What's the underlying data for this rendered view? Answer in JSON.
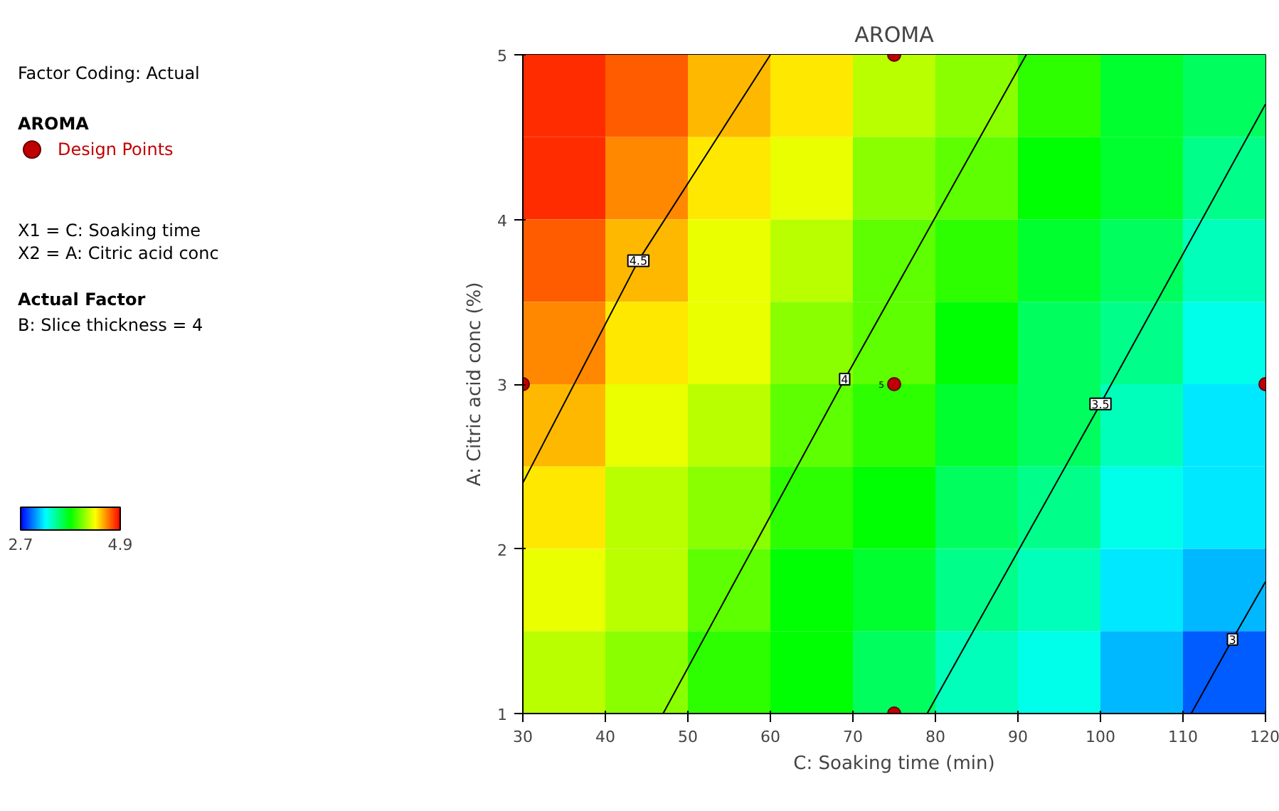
{
  "chart_data": {
    "type": "heatmap",
    "title": "AROMA",
    "xlabel": "C: Soaking time (min)",
    "ylabel": "A: Citric acid conc (%)",
    "legend_title": "AROMA",
    "x": [
      35,
      45,
      55,
      65,
      75,
      85,
      95,
      105,
      115
    ],
    "y": [
      4.75,
      4.25,
      3.75,
      3.25,
      2.75,
      2.25,
      1.75,
      1.25
    ],
    "cells": [
      [
        4.8,
        4.7,
        4.5,
        4.4,
        4.2,
        4.1,
        3.9,
        3.7,
        3.6
      ],
      [
        4.8,
        4.6,
        4.4,
        4.3,
        4.1,
        4.0,
        3.8,
        3.7,
        3.5
      ],
      [
        4.7,
        4.5,
        4.3,
        4.2,
        4.0,
        3.9,
        3.7,
        3.6,
        3.4
      ],
      [
        4.6,
        4.4,
        4.3,
        4.1,
        4.0,
        3.8,
        3.6,
        3.5,
        3.3
      ],
      [
        4.5,
        4.3,
        4.2,
        4.0,
        3.9,
        3.7,
        3.6,
        3.4,
        3.2
      ],
      [
        4.4,
        4.2,
        4.1,
        3.9,
        3.8,
        3.6,
        3.5,
        3.3,
        3.2
      ],
      [
        4.3,
        4.2,
        4.0,
        3.8,
        3.7,
        3.5,
        3.4,
        3.2,
        3.1
      ],
      [
        4.2,
        4.1,
        3.9,
        3.8,
        3.6,
        3.4,
        3.3,
        3.1,
        2.9
      ]
    ],
    "colors": [
      "#0000ff",
      "#00ffff",
      "#00ff00",
      "#ffff00",
      "#ff0000"
    ],
    "clim": [
      2.7,
      4.9
    ],
    "cticks": [
      2.7,
      4.9
    ],
    "series": [
      {
        "type": "line",
        "name": "4.5",
        "marker": "none",
        "color": "#000000",
        "x": [
          30,
          44,
          60
        ],
        "values": [
          2.4,
          3.75,
          5
        ]
      },
      {
        "type": "line",
        "name": "4",
        "marker": "none",
        "color": "#000000",
        "x": [
          47,
          69,
          91
        ],
        "values": [
          1,
          3.03,
          5
        ]
      },
      {
        "type": "line",
        "name": "3.5",
        "marker": "none",
        "color": "#000000",
        "x": [
          79,
          100,
          120
        ],
        "values": [
          1,
          2.88,
          4.7
        ]
      },
      {
        "type": "line",
        "name": "3",
        "marker": "none",
        "color": "#000000",
        "x": [
          111,
          116,
          120
        ],
        "values": [
          1,
          1.45,
          1.8
        ]
      },
      {
        "type": "scatter",
        "name": "Design Points",
        "color": "#c00000",
        "x": [
          30,
          75,
          75,
          75,
          120
        ],
        "values": [
          3,
          5,
          3,
          1,
          3
        ]
      }
    ],
    "xlim": [
      30,
      120
    ],
    "ylim": [
      1,
      5
    ],
    "xticks": [
      30,
      40,
      50,
      60,
      70,
      80,
      90,
      100,
      110,
      120
    ],
    "yticks": [
      1,
      2,
      3,
      4,
      5
    ],
    "grid": false,
    "marker": "circle",
    "annotations": [
      "Factor Coding: Actual",
      "X1 = C: Soaking time",
      "X2 = A: Citric acid conc",
      "Actual Factor",
      "B: Slice thickness = 4",
      {
        "text": "5",
        "x": 75,
        "y": 3
      }
    ]
  }
}
